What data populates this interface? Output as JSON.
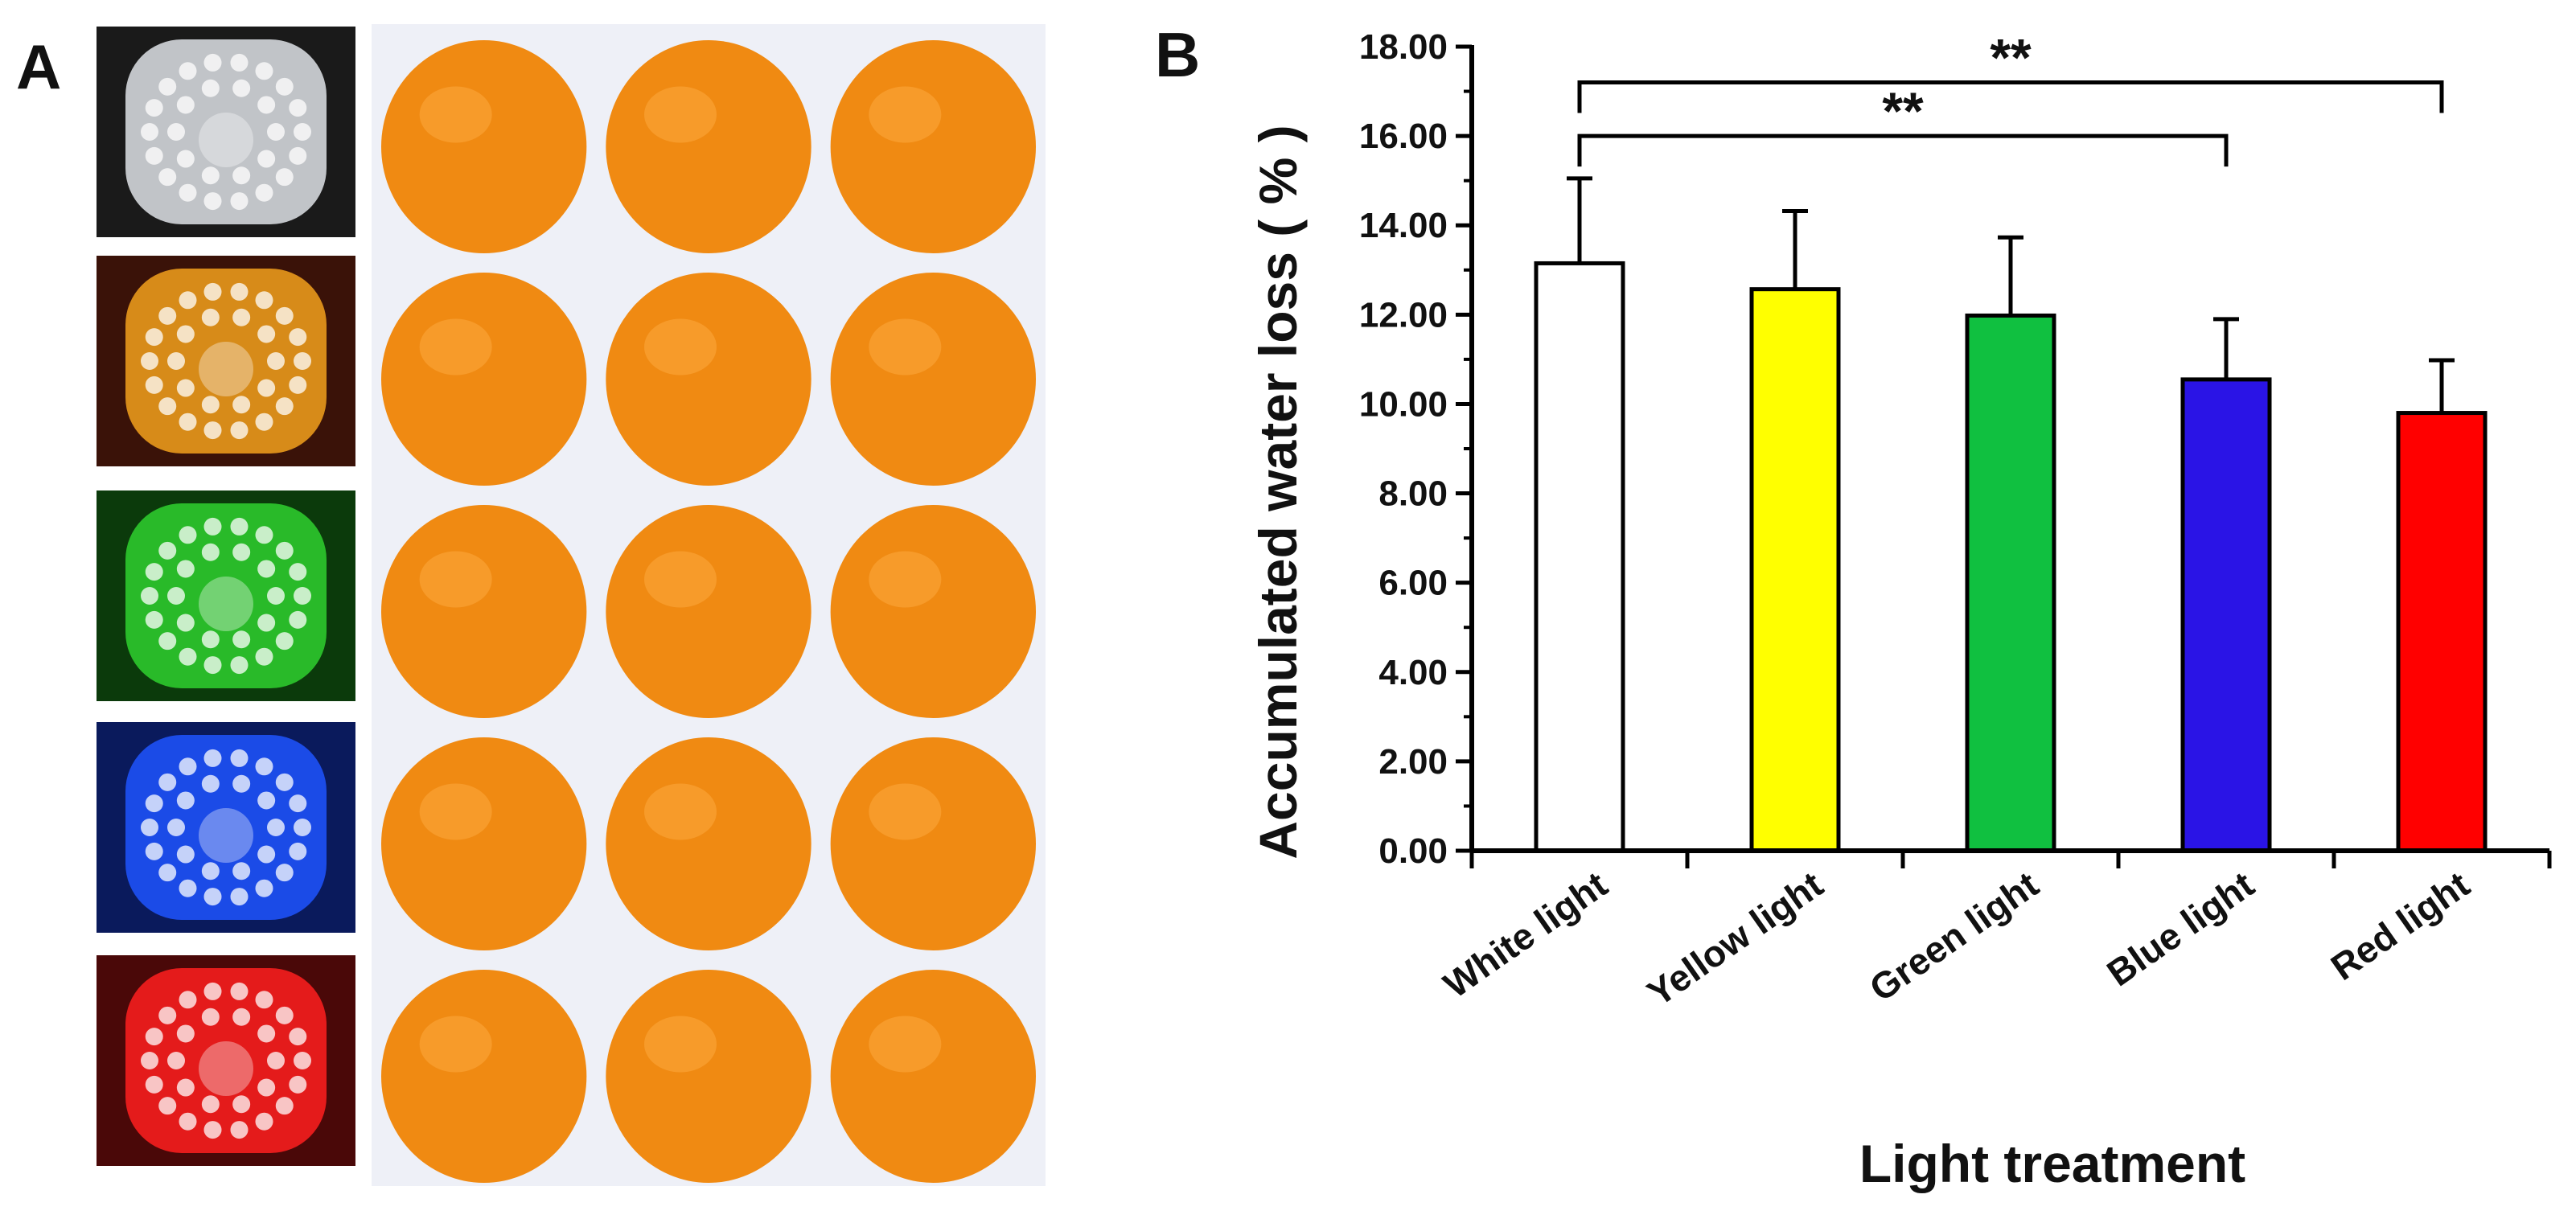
{
  "panels": {
    "a_label": "A",
    "b_label": "B"
  },
  "photo_panel": {
    "led_colors": [
      "#dfe3e8",
      "#f3a11c",
      "#2fd12f",
      "#1f55ff",
      "#ff1f1f"
    ],
    "led_backgrounds": [
      "#1a1a1a",
      "#3a1208",
      "#0b3a0b",
      "#0a1a5c",
      "#4a0808"
    ],
    "orange_color": "#f08a12",
    "orange_grid": {
      "rows": 5,
      "cols": 3
    }
  },
  "chart_data": {
    "type": "bar",
    "categories": [
      "White light",
      "Yellow light",
      "Green light",
      "Blue light",
      "Red light"
    ],
    "values": [
      13.15,
      12.57,
      11.98,
      10.55,
      9.8
    ],
    "errors": [
      1.9,
      1.75,
      1.75,
      1.35,
      1.18
    ],
    "colors": [
      "#ffffff",
      "#ffff00",
      "#10c040",
      "#2a14e6",
      "#ff0000"
    ],
    "ylim": [
      0,
      18
    ],
    "yticks": [
      "0.00",
      "2.00",
      "4.00",
      "6.00",
      "8.00",
      "10.00",
      "12.00",
      "14.00",
      "16.00",
      "18.00"
    ],
    "ylabel": "Accumulated water loss ( % )",
    "xlabel": "Light treatment",
    "significance": [
      {
        "from": 0,
        "to": 4,
        "label": "**",
        "y": 17.2
      },
      {
        "from": 0,
        "to": 3,
        "label": "**",
        "y": 16.0
      }
    ]
  }
}
